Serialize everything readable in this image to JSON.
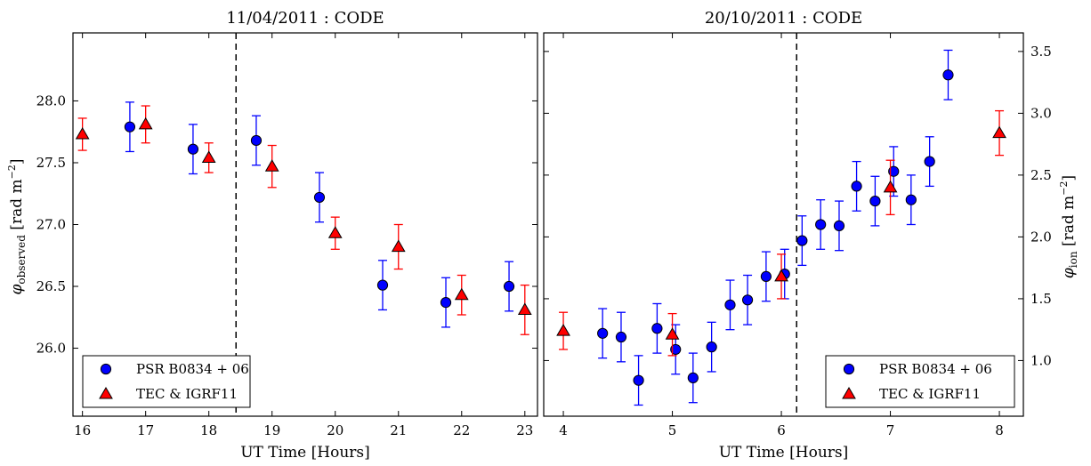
{
  "chart_data": [
    {
      "type": "scatter",
      "title": "11/04/2011 : CODE",
      "xlabel": "UT Time [Hours]",
      "ylabel": "φ_observed [rad m⁻²]",
      "ylabel_main": "φ",
      "ylabel_sub": "observed",
      "ylabel_units": "[rad m",
      "ylabel_exp": "−2",
      "ylabel_close": "]",
      "xlim": [
        15.85,
        23.2
      ],
      "ylim": [
        25.45,
        28.55
      ],
      "x_ticks": [
        16,
        17,
        18,
        19,
        20,
        21,
        22,
        23
      ],
      "x_tick_labels": [
        "16",
        "17",
        "18",
        "19",
        "20",
        "21",
        "22",
        "23"
      ],
      "y_ticks": [
        26.0,
        26.5,
        27.0,
        27.5,
        28.0
      ],
      "y_tick_labels": [
        "26.0",
        "26.5",
        "27.0",
        "27.5",
        "28.0"
      ],
      "vline": 18.43,
      "legend_position": "lower-left",
      "series": [
        {
          "name": "PSR B0834 + 06",
          "marker": "circle",
          "color": "#0000ff",
          "errcolor": "#0000ff",
          "points": [
            {
              "x": 16.75,
              "y": 27.79,
              "err": 0.2
            },
            {
              "x": 17.75,
              "y": 27.61,
              "err": 0.2
            },
            {
              "x": 18.75,
              "y": 27.68,
              "err": 0.2
            },
            {
              "x": 19.75,
              "y": 27.22,
              "err": 0.2
            },
            {
              "x": 20.75,
              "y": 26.51,
              "err": 0.2
            },
            {
              "x": 21.75,
              "y": 26.37,
              "err": 0.2
            },
            {
              "x": 22.75,
              "y": 26.5,
              "err": 0.2
            }
          ]
        },
        {
          "name": "TEC & IGRF11",
          "marker": "triangle",
          "color": "#ff0000",
          "errcolor": "#ff0000",
          "points": [
            {
              "x": 16.0,
              "y": 27.73,
              "err": 0.13
            },
            {
              "x": 17.0,
              "y": 27.81,
              "err": 0.15
            },
            {
              "x": 18.0,
              "y": 27.54,
              "err": 0.12
            },
            {
              "x": 19.0,
              "y": 27.47,
              "err": 0.17
            },
            {
              "x": 20.0,
              "y": 26.93,
              "err": 0.13
            },
            {
              "x": 21.0,
              "y": 26.82,
              "err": 0.18
            },
            {
              "x": 22.0,
              "y": 26.43,
              "err": 0.16
            },
            {
              "x": 23.0,
              "y": 26.31,
              "err": 0.2
            }
          ]
        }
      ]
    },
    {
      "type": "scatter",
      "title": "20/10/2011 : CODE",
      "xlabel": "UT Time [Hours]",
      "ylabel": "φ_ion [rad m⁻²]",
      "ylabel_main": "φ",
      "ylabel_sub": "ion",
      "ylabel_units": "[rad m",
      "ylabel_exp": "−2",
      "ylabel_close": "]",
      "xlim": [
        3.82,
        8.22
      ],
      "ylim": [
        0.55,
        3.65
      ],
      "x_ticks": [
        4,
        5,
        6,
        7,
        8
      ],
      "x_tick_labels": [
        "4",
        "5",
        "6",
        "7",
        "8"
      ],
      "y_ticks": [
        1.0,
        1.5,
        2.0,
        2.5,
        3.0,
        3.5
      ],
      "y_tick_labels": [
        "1.0",
        "1.5",
        "2.0",
        "2.5",
        "3.0",
        "3.5"
      ],
      "y_axis_side": "right",
      "vline": 6.14,
      "legend_position": "lower-right",
      "series": [
        {
          "name": "PSR B0834 + 06",
          "marker": "circle",
          "color": "#0000ff",
          "errcolor": "#0000ff",
          "points": [
            {
              "x": 4.36,
              "y": 1.22,
              "err": 0.2
            },
            {
              "x": 4.53,
              "y": 1.19,
              "err": 0.2
            },
            {
              "x": 4.69,
              "y": 0.84,
              "err": 0.2
            },
            {
              "x": 4.86,
              "y": 1.26,
              "err": 0.2
            },
            {
              "x": 5.03,
              "y": 1.09,
              "err": 0.2
            },
            {
              "x": 5.19,
              "y": 0.86,
              "err": 0.2
            },
            {
              "x": 5.36,
              "y": 1.11,
              "err": 0.2
            },
            {
              "x": 5.53,
              "y": 1.45,
              "err": 0.2
            },
            {
              "x": 5.69,
              "y": 1.49,
              "err": 0.2
            },
            {
              "x": 5.86,
              "y": 1.68,
              "err": 0.2
            },
            {
              "x": 6.03,
              "y": 1.7,
              "err": 0.2
            },
            {
              "x": 6.19,
              "y": 1.97,
              "err": 0.2
            },
            {
              "x": 6.36,
              "y": 2.1,
              "err": 0.2
            },
            {
              "x": 6.53,
              "y": 2.09,
              "err": 0.2
            },
            {
              "x": 6.69,
              "y": 2.41,
              "err": 0.2
            },
            {
              "x": 6.86,
              "y": 2.29,
              "err": 0.2
            },
            {
              "x": 7.03,
              "y": 2.53,
              "err": 0.2
            },
            {
              "x": 7.19,
              "y": 2.3,
              "err": 0.2
            },
            {
              "x": 7.36,
              "y": 2.61,
              "err": 0.2
            },
            {
              "x": 7.53,
              "y": 3.31,
              "err": 0.2
            }
          ]
        },
        {
          "name": "TEC & IGRF11",
          "marker": "triangle",
          "color": "#ff0000",
          "errcolor": "#ff0000",
          "points": [
            {
              "x": 4.0,
              "y": 1.24,
              "err": 0.15
            },
            {
              "x": 5.0,
              "y": 1.21,
              "err": 0.17
            },
            {
              "x": 6.0,
              "y": 1.68,
              "err": 0.18
            },
            {
              "x": 7.0,
              "y": 2.4,
              "err": 0.22
            },
            {
              "x": 8.0,
              "y": 2.84,
              "err": 0.18
            }
          ]
        }
      ]
    }
  ]
}
